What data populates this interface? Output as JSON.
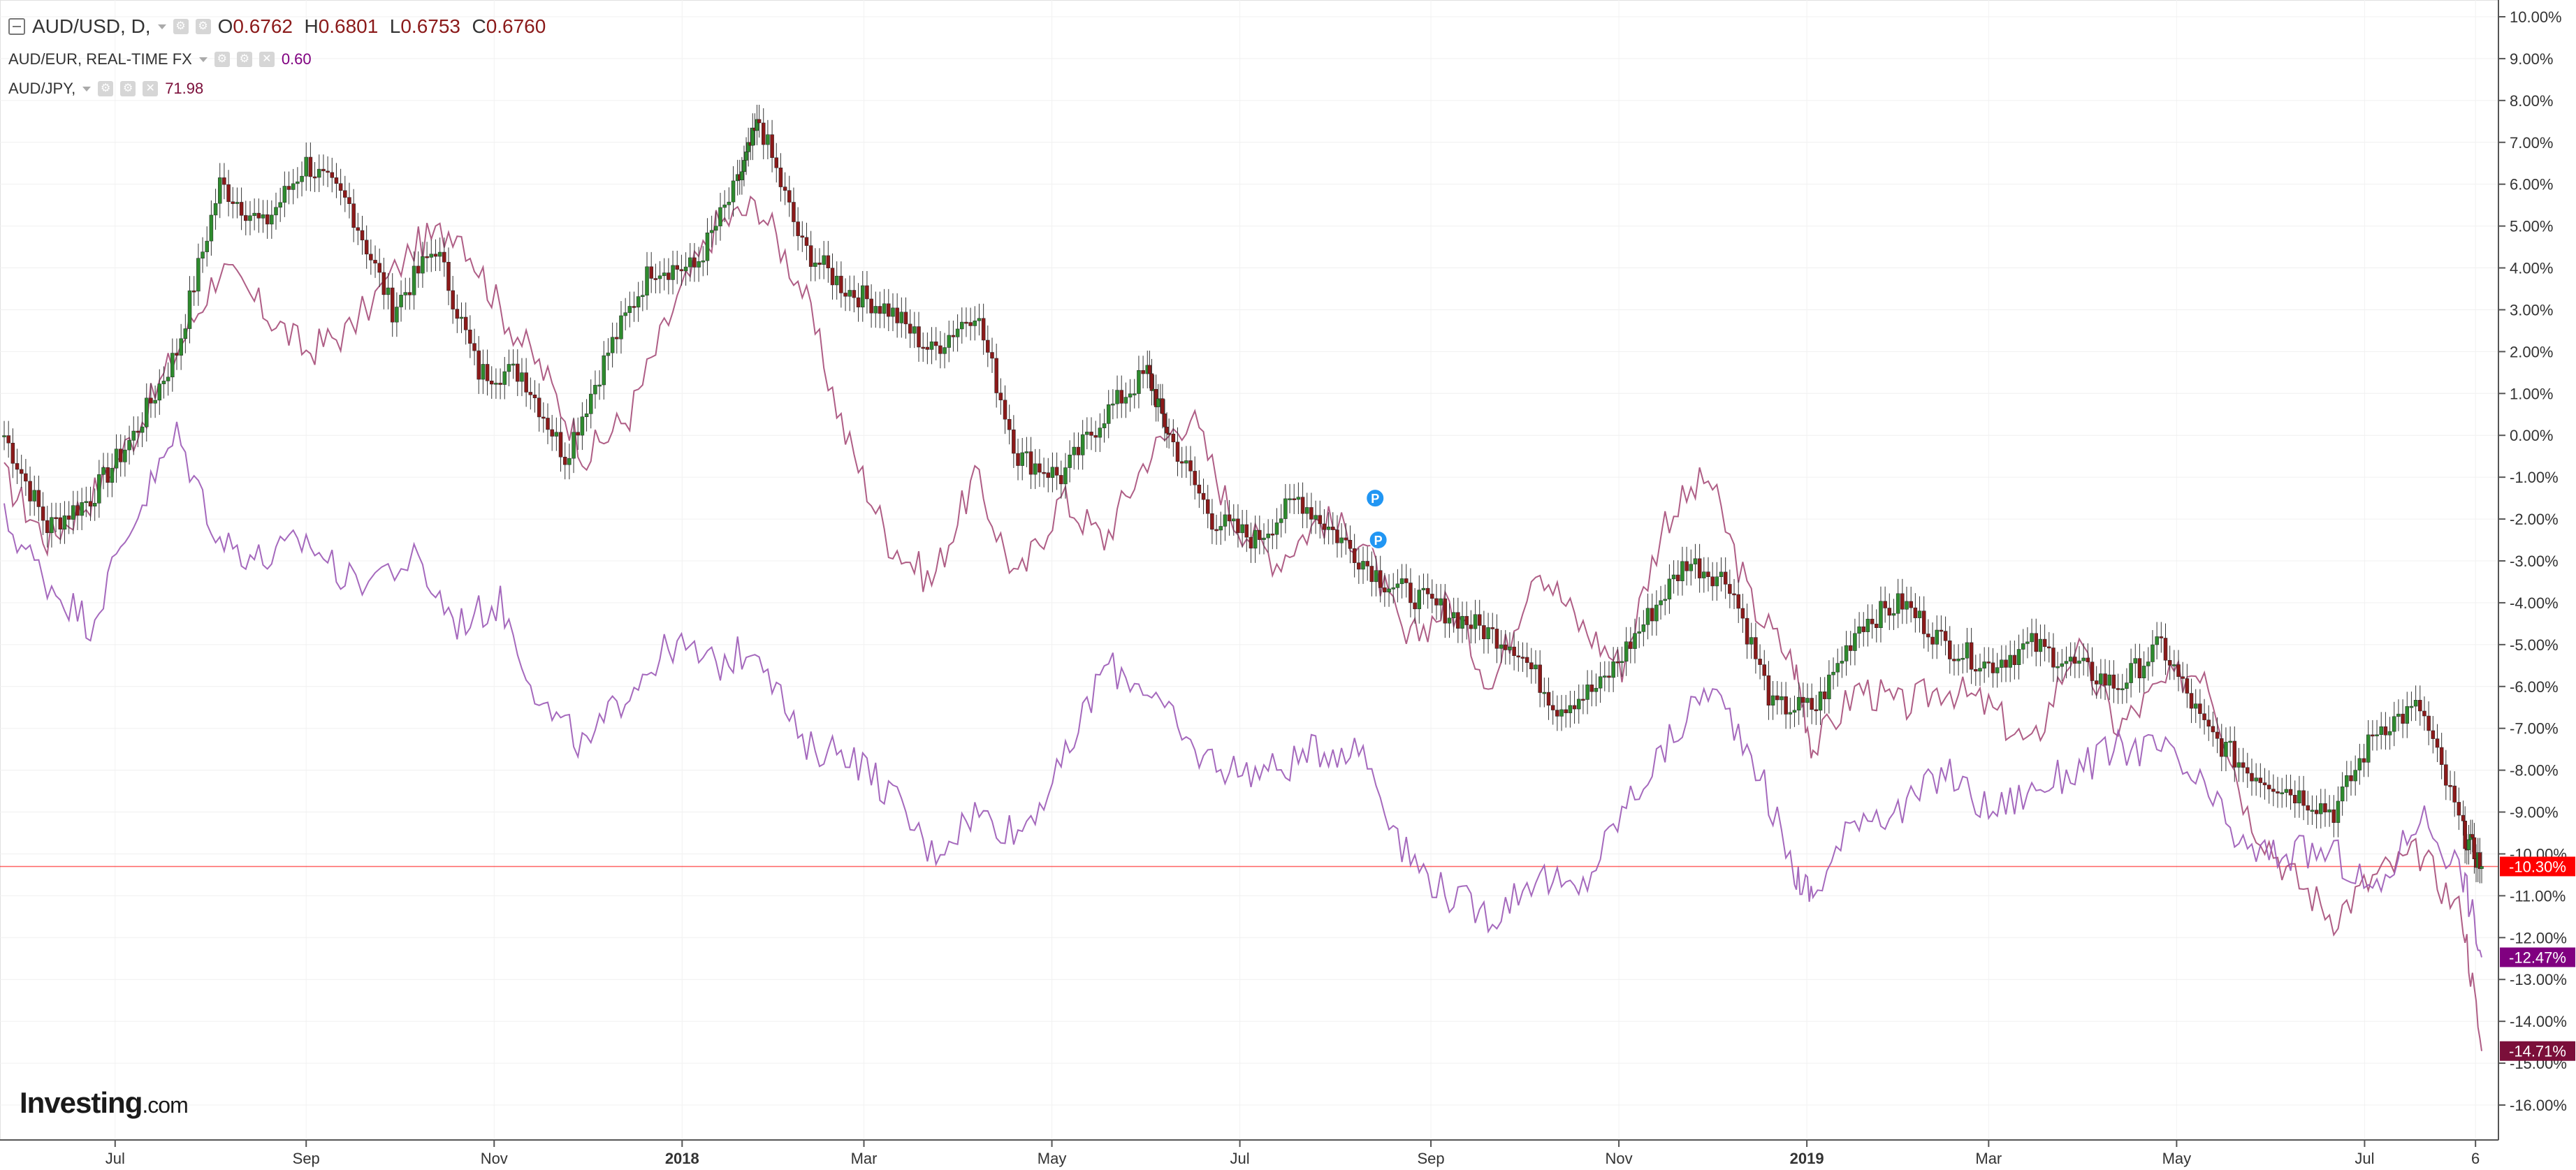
{
  "legend": {
    "main": {
      "symbol": "AUD/USD, D,",
      "open_label": "O",
      "open": "0.6762",
      "high_label": "H",
      "high": "0.6801",
      "low_label": "L",
      "low": "0.6753",
      "close_label": "C",
      "close": "0.6760"
    },
    "eur": {
      "symbol": "AUD/EUR, REAL-TIME FX",
      "value": "0.60",
      "color": "#a64d79"
    },
    "jpy": {
      "symbol": "AUD/JPY,",
      "value": "71.98",
      "color": "#8e44ad"
    }
  },
  "logo": {
    "name": "Investing",
    "suffix": ".com"
  },
  "markers": [
    {
      "label": "P",
      "date": "2018-08-13",
      "value_pct": -1.5
    },
    {
      "label": "P",
      "date": "2018-08-14",
      "value_pct": -2.5
    }
  ],
  "chart_data": {
    "type": "line",
    "title": "",
    "xlabel": "",
    "ylabel": "",
    "y_scale": "percent change",
    "ylim": [
      -16.8,
      10.5
    ],
    "y_ticks": [
      "10.00%",
      "9.00%",
      "8.00%",
      "7.00%",
      "6.00%",
      "5.00%",
      "4.00%",
      "3.00%",
      "2.00%",
      "1.00%",
      "0.00%",
      "-1.00%",
      "-2.00%",
      "-3.00%",
      "-4.00%",
      "-5.00%",
      "-6.00%",
      "-7.00%",
      "-8.00%",
      "-9.00%",
      "-10.00%",
      "-11.00%",
      "-12.00%",
      "-13.00%",
      "-14.00%",
      "-15.00%",
      "-16.00%"
    ],
    "x_range": [
      "2017-05-26",
      "2019-08-08"
    ],
    "x_ticks": [
      {
        "label": "Jul",
        "date": "2017-07-01",
        "bold": false
      },
      {
        "label": "Sep",
        "date": "2017-09-01",
        "bold": false
      },
      {
        "label": "Nov",
        "date": "2017-11-01",
        "bold": false
      },
      {
        "label": "2018",
        "date": "2018-01-01",
        "bold": true
      },
      {
        "label": "Mar",
        "date": "2018-03-01",
        "bold": false
      },
      {
        "label": "May",
        "date": "2018-05-01",
        "bold": false
      },
      {
        "label": "Jul",
        "date": "2018-07-01",
        "bold": false
      },
      {
        "label": "Sep",
        "date": "2018-09-01",
        "bold": false
      },
      {
        "label": "Nov",
        "date": "2018-11-01",
        "bold": false
      },
      {
        "label": "2019",
        "date": "2019-01-01",
        "bold": true
      },
      {
        "label": "Mar",
        "date": "2019-03-01",
        "bold": false
      },
      {
        "label": "May",
        "date": "2019-05-01",
        "bold": false
      },
      {
        "label": "Jul",
        "date": "2019-07-01",
        "bold": false
      },
      {
        "label": "6",
        "date": "2019-08-06",
        "bold": false
      }
    ],
    "grid": true,
    "legend_position": "top-left",
    "current_line": {
      "value_pct": -10.3,
      "color": "#ff0000"
    },
    "price_labels": [
      {
        "text": "-10.30%",
        "value_pct": -10.3,
        "bg": "#ff0000"
      },
      {
        "text": "-12.47%",
        "value_pct": -12.47,
        "bg": "#800080"
      },
      {
        "text": "-14.71%",
        "value_pct": -14.71,
        "bg": "#7b0f3a"
      }
    ],
    "series": [
      {
        "name": "AUD/USD",
        "style": "candles",
        "up_color": "#2e8b2e",
        "down_color": "#8b1a1a",
        "x": [
          "2017-05-26",
          "2017-06-09",
          "2017-06-23",
          "2017-07-07",
          "2017-07-21",
          "2017-08-04",
          "2017-08-18",
          "2017-09-01",
          "2017-09-15",
          "2017-09-29",
          "2017-10-13",
          "2017-10-27",
          "2017-11-10",
          "2017-11-24",
          "2017-12-08",
          "2017-12-22",
          "2018-01-05",
          "2018-01-19",
          "2018-01-26",
          "2018-02-09",
          "2018-02-23",
          "2018-03-09",
          "2018-03-23",
          "2018-04-06",
          "2018-04-20",
          "2018-05-04",
          "2018-05-18",
          "2018-06-01",
          "2018-06-08",
          "2018-06-22",
          "2018-07-06",
          "2018-07-20",
          "2018-08-03",
          "2018-08-17",
          "2018-08-31",
          "2018-09-14",
          "2018-09-28",
          "2018-10-12",
          "2018-10-26",
          "2018-11-09",
          "2018-11-23",
          "2018-12-07",
          "2018-12-21",
          "2019-01-04",
          "2019-01-18",
          "2019-02-01",
          "2019-02-15",
          "2019-03-01",
          "2019-03-15",
          "2019-03-29",
          "2019-04-12",
          "2019-04-26",
          "2019-05-10",
          "2019-05-24",
          "2019-06-07",
          "2019-06-21",
          "2019-07-05",
          "2019-07-19",
          "2019-08-02",
          "2019-08-08"
        ],
        "values": [
          0.0,
          -2.2,
          -1.5,
          0.0,
          2.0,
          6.0,
          5.0,
          6.5,
          5.5,
          3.0,
          4.5,
          1.5,
          1.5,
          -0.5,
          2.0,
          4.0,
          4.0,
          6.0,
          7.5,
          4.5,
          3.5,
          3.0,
          2.0,
          3.0,
          -0.5,
          -1.0,
          0.5,
          1.5,
          0.0,
          -2.0,
          -2.5,
          -1.5,
          -2.5,
          -3.5,
          -4.0,
          -4.5,
          -5.0,
          -6.5,
          -6.0,
          -4.5,
          -3.0,
          -3.5,
          -6.5,
          -6.5,
          -4.5,
          -4.0,
          -5.0,
          -5.5,
          -5.0,
          -5.5,
          -6.0,
          -5.0,
          -7.0,
          -8.0,
          -8.5,
          -9.0,
          -7.0,
          -6.5,
          -9.5,
          -10.3
        ]
      },
      {
        "name": "AUD/EUR",
        "style": "line",
        "color": "#a64d79",
        "x": [
          "2017-05-26",
          "2017-06-09",
          "2017-06-23",
          "2017-07-07",
          "2017-07-21",
          "2017-08-04",
          "2017-08-18",
          "2017-09-01",
          "2017-09-15",
          "2017-10-06",
          "2017-10-20",
          "2017-11-03",
          "2017-11-17",
          "2017-12-01",
          "2017-12-15",
          "2017-12-29",
          "2018-01-12",
          "2018-01-26",
          "2018-02-09",
          "2018-02-23",
          "2018-03-09",
          "2018-03-23",
          "2018-04-06",
          "2018-04-20",
          "2018-05-04",
          "2018-05-18",
          "2018-06-01",
          "2018-06-15",
          "2018-06-29",
          "2018-07-13",
          "2018-07-27",
          "2018-08-10",
          "2018-08-24",
          "2018-09-07",
          "2018-09-21",
          "2018-10-05",
          "2018-10-19",
          "2018-11-02",
          "2018-11-16",
          "2018-11-30",
          "2018-12-14",
          "2018-12-28",
          "2019-01-03",
          "2019-01-18",
          "2019-02-01",
          "2019-02-15",
          "2019-03-01",
          "2019-03-15",
          "2019-03-29",
          "2019-04-12",
          "2019-04-26",
          "2019-05-10",
          "2019-05-24",
          "2019-06-07",
          "2019-06-21",
          "2019-07-05",
          "2019-07-19",
          "2019-08-02",
          "2019-08-08"
        ],
        "values": [
          -1.0,
          -2.5,
          -1.5,
          0.0,
          2.0,
          4.0,
          3.0,
          2.0,
          2.5,
          4.5,
          5.0,
          3.0,
          1.5,
          -0.5,
          0.5,
          3.0,
          5.0,
          5.5,
          3.5,
          0.0,
          -2.5,
          -3.5,
          -1.0,
          -3.5,
          -1.5,
          -2.5,
          -0.5,
          0.5,
          -2.0,
          -3.0,
          -2.0,
          -2.5,
          -5.0,
          -4.0,
          -6.0,
          -3.0,
          -4.5,
          -5.5,
          -2.0,
          -1.0,
          -4.0,
          -5.5,
          -7.5,
          -6.0,
          -6.5,
          -6.0,
          -6.5,
          -7.5,
          -5.0,
          -7.0,
          -6.0,
          -5.5,
          -9.0,
          -10.5,
          -11.5,
          -10.5,
          -10.0,
          -11.5,
          -14.71
        ]
      },
      {
        "name": "AUD/JPY",
        "style": "line",
        "color": "#9b59b6",
        "x": [
          "2017-05-26",
          "2017-06-09",
          "2017-06-23",
          "2017-07-07",
          "2017-07-21",
          "2017-08-04",
          "2017-08-18",
          "2017-09-01",
          "2017-09-15",
          "2017-10-06",
          "2017-10-20",
          "2017-11-03",
          "2017-11-17",
          "2017-12-01",
          "2017-12-15",
          "2017-12-29",
          "2018-01-12",
          "2018-01-26",
          "2018-02-09",
          "2018-02-23",
          "2018-03-09",
          "2018-03-23",
          "2018-04-06",
          "2018-04-20",
          "2018-05-04",
          "2018-05-18",
          "2018-06-01",
          "2018-06-15",
          "2018-06-29",
          "2018-07-13",
          "2018-07-27",
          "2018-08-10",
          "2018-08-24",
          "2018-09-07",
          "2018-09-21",
          "2018-10-05",
          "2018-10-19",
          "2018-11-02",
          "2018-11-16",
          "2018-11-30",
          "2018-12-14",
          "2018-12-28",
          "2019-01-03",
          "2019-01-18",
          "2019-02-01",
          "2019-02-15",
          "2019-03-01",
          "2019-03-15",
          "2019-03-29",
          "2019-04-12",
          "2019-04-26",
          "2019-05-10",
          "2019-05-24",
          "2019-06-07",
          "2019-06-21",
          "2019-07-05",
          "2019-07-19",
          "2019-08-02",
          "2019-08-08"
        ],
        "values": [
          -2.0,
          -3.5,
          -4.5,
          -2.0,
          0.0,
          -2.5,
          -3.0,
          -2.5,
          -3.5,
          -3.0,
          -4.5,
          -4.0,
          -6.5,
          -7.5,
          -6.0,
          -5.0,
          -5.5,
          -5.0,
          -7.5,
          -7.5,
          -8.5,
          -10.0,
          -9.0,
          -9.5,
          -8.0,
          -5.5,
          -6.0,
          -7.5,
          -8.0,
          -8.0,
          -7.5,
          -7.5,
          -10.0,
          -11.0,
          -11.5,
          -10.5,
          -11.0,
          -9.0,
          -7.5,
          -6.0,
          -7.5,
          -10.5,
          -11.0,
          -9.0,
          -9.0,
          -8.0,
          -9.0,
          -8.5,
          -8.0,
          -7.5,
          -7.5,
          -8.5,
          -10.0,
          -10.0,
          -10.0,
          -11.0,
          -9.0,
          -10.5,
          -12.47
        ]
      }
    ]
  }
}
